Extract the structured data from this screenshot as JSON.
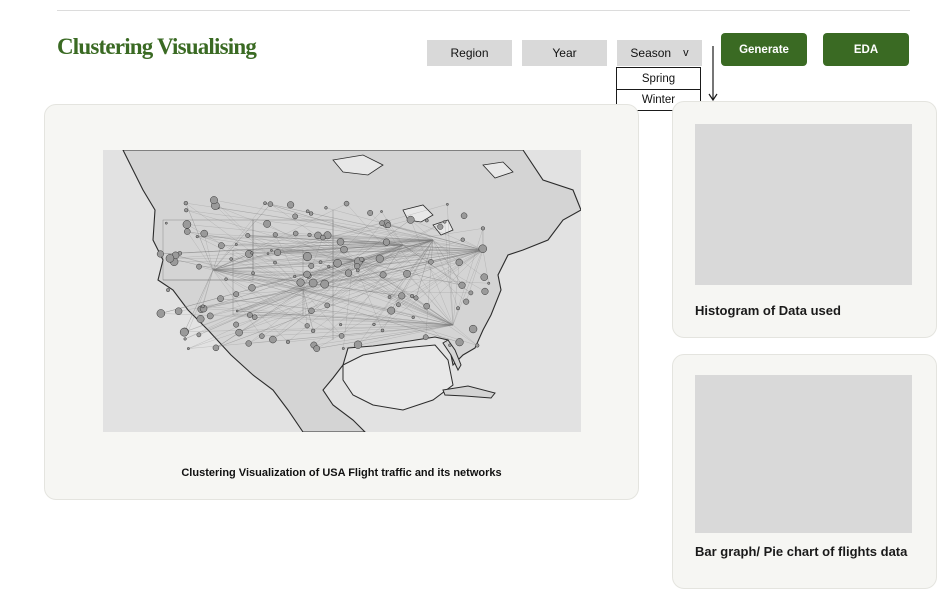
{
  "header": {
    "title": "Clustering Visualising"
  },
  "filters": {
    "region_label": "Region",
    "year_label": "Year",
    "season_label": "Season",
    "season_caret": "v",
    "season_options": [
      "Spring",
      "Winter"
    ]
  },
  "actions": {
    "generate_label": "Generate",
    "eda_label": "EDA"
  },
  "map_panel": {
    "caption": "Clustering Visualization of USA Flight traffic and its networks"
  },
  "histogram_panel": {
    "title": "Histogram of Data used"
  },
  "bar_panel": {
    "title": "Bar graph/ Pie chart of flights data"
  },
  "colors": {
    "accent": "#3a6a23",
    "button_gray": "#d9d9d9",
    "card_bg": "#f6f6f3"
  }
}
